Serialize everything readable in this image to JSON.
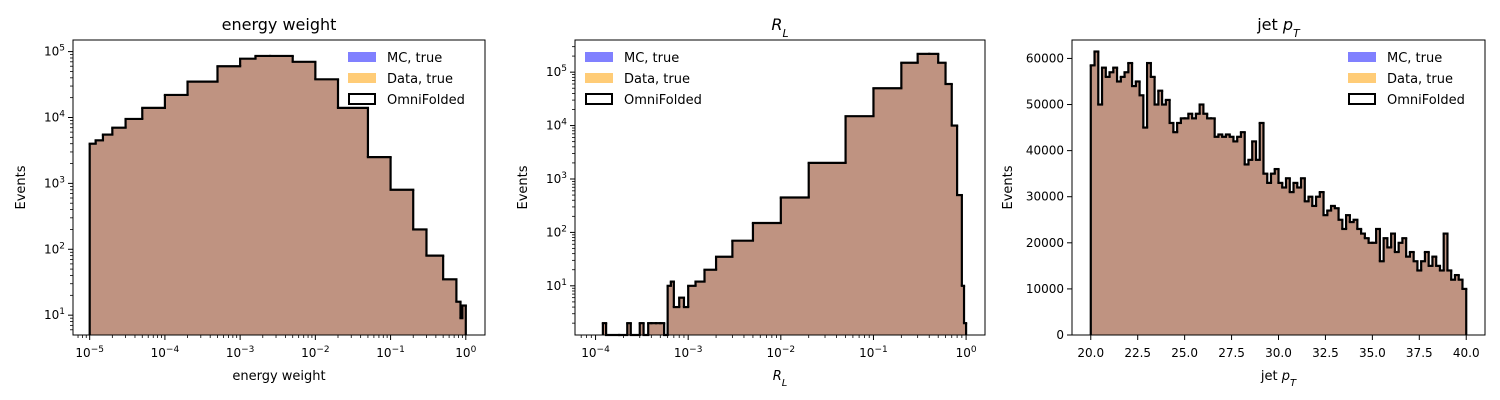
{
  "colors": {
    "mc_true": "#8080ff",
    "data_true": "#ffcc77",
    "overlap_fill": "#bf9381",
    "omnifolded_step": "#000000"
  },
  "legend": {
    "placement": "upper",
    "entries": [
      {
        "label": "MC, true",
        "style": "fill",
        "color": "#8080ff"
      },
      {
        "label": "Data, true",
        "style": "fill",
        "color": "#ffcc77"
      },
      {
        "label": "OmniFolded",
        "style": "outline",
        "color": "#000000"
      }
    ]
  },
  "chart_data": [
    {
      "type": "histogram",
      "title": "energy weight",
      "title_has_math": false,
      "xlabel": "energy weight",
      "xlabel_has_math": false,
      "ylabel": "Events",
      "xscale": "log",
      "yscale": "log",
      "xlim": [
        6e-06,
        1.8
      ],
      "ylim": [
        5,
        150000
      ],
      "x_ticks": [
        {
          "value": 1e-05,
          "base": "10",
          "exp": "−5"
        },
        {
          "value": 0.0001,
          "base": "10",
          "exp": "−4"
        },
        {
          "value": 0.001,
          "base": "10",
          "exp": "−3"
        },
        {
          "value": 0.01,
          "base": "10",
          "exp": "−2"
        },
        {
          "value": 0.1,
          "base": "10",
          "exp": "−1"
        },
        {
          "value": 1,
          "base": "10",
          "exp": "0"
        }
      ],
      "y_ticks": [
        {
          "value": 10,
          "base": "10",
          "exp": "1"
        },
        {
          "value": 100,
          "base": "10",
          "exp": "2"
        },
        {
          "value": 1000,
          "base": "10",
          "exp": "3"
        },
        {
          "value": 10000,
          "base": "10",
          "exp": "4"
        },
        {
          "value": 100000,
          "base": "10",
          "exp": "5"
        }
      ],
      "legend_position": "upper-right",
      "bin_range": [
        1e-05,
        1
      ],
      "bins": [
        {
          "x": 1e-05,
          "y": 4000
        },
        {
          "x": 1.2e-05,
          "y": 4500
        },
        {
          "x": 1.5e-05,
          "y": 5500
        },
        {
          "x": 2e-05,
          "y": 7000
        },
        {
          "x": 3e-05,
          "y": 9500
        },
        {
          "x": 5e-05,
          "y": 14000
        },
        {
          "x": 0.0001,
          "y": 22000
        },
        {
          "x": 0.0002,
          "y": 35000
        },
        {
          "x": 0.0005,
          "y": 60000
        },
        {
          "x": 0.001,
          "y": 78000
        },
        {
          "x": 0.0016,
          "y": 86000
        },
        {
          "x": 0.0025,
          "y": 86000
        },
        {
          "x": 0.005,
          "y": 70000
        },
        {
          "x": 0.01,
          "y": 38000
        },
        {
          "x": 0.02,
          "y": 14000
        },
        {
          "x": 0.05,
          "y": 2500
        },
        {
          "x": 0.1,
          "y": 800
        },
        {
          "x": 0.2,
          "y": 200
        },
        {
          "x": 0.3,
          "y": 80
        },
        {
          "x": 0.5,
          "y": 35
        },
        {
          "x": 0.75,
          "y": 16
        },
        {
          "x": 0.85,
          "y": 9
        },
        {
          "x": 0.9,
          "y": 14
        }
      ]
    },
    {
      "type": "histogram",
      "title": "R_L",
      "title_has_math": true,
      "title_math": {
        "base": "R",
        "sub": "L"
      },
      "xlabel": "R_L",
      "xlabel_has_math": true,
      "xlabel_math": {
        "base": "R",
        "sub": "L"
      },
      "ylabel": "Events",
      "xscale": "log",
      "yscale": "log",
      "xlim": [
        6e-05,
        1.6
      ],
      "ylim": [
        1.2,
        400000
      ],
      "x_ticks": [
        {
          "value": 0.0001,
          "base": "10",
          "exp": "−4"
        },
        {
          "value": 0.001,
          "base": "10",
          "exp": "−3"
        },
        {
          "value": 0.01,
          "base": "10",
          "exp": "−2"
        },
        {
          "value": 0.1,
          "base": "10",
          "exp": "−1"
        },
        {
          "value": 1,
          "base": "10",
          "exp": "0"
        }
      ],
      "y_ticks": [
        {
          "value": 10,
          "base": "10",
          "exp": "1"
        },
        {
          "value": 100,
          "base": "10",
          "exp": "2"
        },
        {
          "value": 1000,
          "base": "10",
          "exp": "3"
        },
        {
          "value": 10000,
          "base": "10",
          "exp": "4"
        },
        {
          "value": 100000,
          "base": "10",
          "exp": "5"
        }
      ],
      "legend_position": "upper-left",
      "bin_range": [
        0.00012,
        1
      ],
      "bins": [
        {
          "x": 0.00012,
          "y": 2
        },
        {
          "x": 0.00013,
          "y": 1
        },
        {
          "x": 0.00018,
          "y": 1
        },
        {
          "x": 0.00022,
          "y": 2
        },
        {
          "x": 0.00024,
          "y": 1
        },
        {
          "x": 0.0003,
          "y": 2
        },
        {
          "x": 0.00033,
          "y": 1
        },
        {
          "x": 0.00037,
          "y": 2
        },
        {
          "x": 0.0004,
          "y": 2
        },
        {
          "x": 0.00045,
          "y": 2
        },
        {
          "x": 0.0005,
          "y": 2
        },
        {
          "x": 0.00055,
          "y": 1
        },
        {
          "x": 0.0006,
          "y": 10
        },
        {
          "x": 0.00065,
          "y": 12
        },
        {
          "x": 0.0007,
          "y": 4
        },
        {
          "x": 0.0008,
          "y": 6
        },
        {
          "x": 0.0009,
          "y": 4
        },
        {
          "x": 0.001,
          "y": 10
        },
        {
          "x": 0.0012,
          "y": 12
        },
        {
          "x": 0.0015,
          "y": 20
        },
        {
          "x": 0.002,
          "y": 35
        },
        {
          "x": 0.003,
          "y": 70
        },
        {
          "x": 0.005,
          "y": 150
        },
        {
          "x": 0.01,
          "y": 450
        },
        {
          "x": 0.02,
          "y": 2000
        },
        {
          "x": 0.05,
          "y": 15000
        },
        {
          "x": 0.1,
          "y": 50000
        },
        {
          "x": 0.2,
          "y": 150000
        },
        {
          "x": 0.3,
          "y": 220000
        },
        {
          "x": 0.4,
          "y": 220000
        },
        {
          "x": 0.5,
          "y": 150000
        },
        {
          "x": 0.6,
          "y": 60000
        },
        {
          "x": 0.7,
          "y": 10000
        },
        {
          "x": 0.8,
          "y": 500
        },
        {
          "x": 0.9,
          "y": 10
        },
        {
          "x": 0.95,
          "y": 2
        }
      ]
    },
    {
      "type": "histogram",
      "title": "jet p_T",
      "title_has_math": true,
      "title_math": {
        "prefix": "jet ",
        "base": "p",
        "sub": "T"
      },
      "xlabel": "jet p_T",
      "xlabel_has_math": true,
      "xlabel_math": {
        "prefix": "jet ",
        "base": "p",
        "sub": "T"
      },
      "ylabel": "Events",
      "xscale": "linear",
      "yscale": "linear",
      "xlim": [
        19.0,
        41.0
      ],
      "ylim": [
        0,
        64000
      ],
      "x_ticks": [
        {
          "value": 20.0,
          "label": "20.0"
        },
        {
          "value": 22.5,
          "label": "22.5"
        },
        {
          "value": 25.0,
          "label": "25.0"
        },
        {
          "value": 27.5,
          "label": "27.5"
        },
        {
          "value": 30.0,
          "label": "30.0"
        },
        {
          "value": 32.5,
          "label": "32.5"
        },
        {
          "value": 35.0,
          "label": "35.0"
        },
        {
          "value": 37.5,
          "label": "37.5"
        },
        {
          "value": 40.0,
          "label": "40.0"
        }
      ],
      "y_ticks": [
        {
          "value": 0,
          "label": "0"
        },
        {
          "value": 10000,
          "label": "10000"
        },
        {
          "value": 20000,
          "label": "20000"
        },
        {
          "value": 30000,
          "label": "30000"
        },
        {
          "value": 40000,
          "label": "40000"
        },
        {
          "value": 50000,
          "label": "50000"
        },
        {
          "value": 60000,
          "label": "60000"
        }
      ],
      "legend_position": "upper-right",
      "bin_range": [
        20.0,
        40.0
      ],
      "bins": [
        {
          "x": 20.0,
          "y": 58500
        },
        {
          "x": 20.2,
          "y": 61500
        },
        {
          "x": 20.4,
          "y": 50000
        },
        {
          "x": 20.6,
          "y": 58000
        },
        {
          "x": 20.8,
          "y": 56000
        },
        {
          "x": 21.0,
          "y": 57000
        },
        {
          "x": 21.2,
          "y": 58000
        },
        {
          "x": 21.4,
          "y": 55000
        },
        {
          "x": 21.6,
          "y": 56000
        },
        {
          "x": 21.8,
          "y": 57000
        },
        {
          "x": 22.0,
          "y": 59000
        },
        {
          "x": 22.2,
          "y": 54000
        },
        {
          "x": 22.4,
          "y": 55000
        },
        {
          "x": 22.6,
          "y": 52000
        },
        {
          "x": 22.8,
          "y": 45000
        },
        {
          "x": 23.0,
          "y": 59000
        },
        {
          "x": 23.2,
          "y": 56000
        },
        {
          "x": 23.4,
          "y": 50000
        },
        {
          "x": 23.6,
          "y": 53000
        },
        {
          "x": 23.8,
          "y": 50000
        },
        {
          "x": 24.0,
          "y": 51000
        },
        {
          "x": 24.2,
          "y": 46000
        },
        {
          "x": 24.4,
          "y": 44000
        },
        {
          "x": 24.6,
          "y": 46000
        },
        {
          "x": 24.8,
          "y": 47000
        },
        {
          "x": 25.0,
          "y": 47000
        },
        {
          "x": 25.2,
          "y": 48000
        },
        {
          "x": 25.4,
          "y": 47000
        },
        {
          "x": 25.6,
          "y": 48000
        },
        {
          "x": 25.8,
          "y": 50000
        },
        {
          "x": 26.0,
          "y": 48000
        },
        {
          "x": 26.2,
          "y": 47000
        },
        {
          "x": 26.4,
          "y": 47000
        },
        {
          "x": 26.6,
          "y": 43000
        },
        {
          "x": 26.8,
          "y": 43500
        },
        {
          "x": 27.0,
          "y": 43000
        },
        {
          "x": 27.2,
          "y": 43500
        },
        {
          "x": 27.4,
          "y": 43000
        },
        {
          "x": 27.6,
          "y": 42000
        },
        {
          "x": 27.8,
          "y": 43000
        },
        {
          "x": 28.0,
          "y": 44000
        },
        {
          "x": 28.2,
          "y": 37000
        },
        {
          "x": 28.4,
          "y": 38000
        },
        {
          "x": 28.6,
          "y": 42000
        },
        {
          "x": 28.8,
          "y": 38000
        },
        {
          "x": 29.0,
          "y": 46000
        },
        {
          "x": 29.2,
          "y": 35000
        },
        {
          "x": 29.4,
          "y": 33000
        },
        {
          "x": 29.6,
          "y": 35000
        },
        {
          "x": 29.8,
          "y": 36000
        },
        {
          "x": 30.0,
          "y": 33000
        },
        {
          "x": 30.2,
          "y": 32000
        },
        {
          "x": 30.4,
          "y": 34000
        },
        {
          "x": 30.6,
          "y": 31000
        },
        {
          "x": 30.8,
          "y": 33000
        },
        {
          "x": 31.0,
          "y": 32000
        },
        {
          "x": 31.2,
          "y": 34000
        },
        {
          "x": 31.4,
          "y": 29000
        },
        {
          "x": 31.6,
          "y": 30000
        },
        {
          "x": 31.8,
          "y": 28000
        },
        {
          "x": 32.0,
          "y": 30000
        },
        {
          "x": 32.2,
          "y": 31000
        },
        {
          "x": 32.4,
          "y": 26000
        },
        {
          "x": 32.6,
          "y": 27000
        },
        {
          "x": 32.8,
          "y": 28000
        },
        {
          "x": 33.0,
          "y": 27500
        },
        {
          "x": 33.2,
          "y": 25000
        },
        {
          "x": 33.4,
          "y": 23000
        },
        {
          "x": 33.6,
          "y": 26000
        },
        {
          "x": 33.8,
          "y": 24500
        },
        {
          "x": 34.0,
          "y": 25000
        },
        {
          "x": 34.2,
          "y": 23000
        },
        {
          "x": 34.4,
          "y": 22000
        },
        {
          "x": 34.6,
          "y": 21000
        },
        {
          "x": 34.8,
          "y": 20000
        },
        {
          "x": 35.0,
          "y": 20000
        },
        {
          "x": 35.2,
          "y": 23000
        },
        {
          "x": 35.4,
          "y": 16000
        },
        {
          "x": 35.6,
          "y": 21000
        },
        {
          "x": 35.8,
          "y": 19000
        },
        {
          "x": 36.0,
          "y": 22000
        },
        {
          "x": 36.2,
          "y": 18000
        },
        {
          "x": 36.4,
          "y": 20000
        },
        {
          "x": 36.6,
          "y": 21000
        },
        {
          "x": 36.8,
          "y": 17000
        },
        {
          "x": 37.0,
          "y": 18000
        },
        {
          "x": 37.2,
          "y": 16000
        },
        {
          "x": 37.4,
          "y": 14000
        },
        {
          "x": 37.6,
          "y": 16000
        },
        {
          "x": 37.8,
          "y": 18000
        },
        {
          "x": 38.0,
          "y": 15000
        },
        {
          "x": 38.2,
          "y": 17000
        },
        {
          "x": 38.4,
          "y": 15000
        },
        {
          "x": 38.6,
          "y": 14000
        },
        {
          "x": 38.8,
          "y": 22000
        },
        {
          "x": 39.0,
          "y": 14000
        },
        {
          "x": 39.2,
          "y": 12000
        },
        {
          "x": 39.4,
          "y": 13000
        },
        {
          "x": 39.6,
          "y": 12000
        },
        {
          "x": 39.8,
          "y": 10000
        }
      ]
    }
  ]
}
